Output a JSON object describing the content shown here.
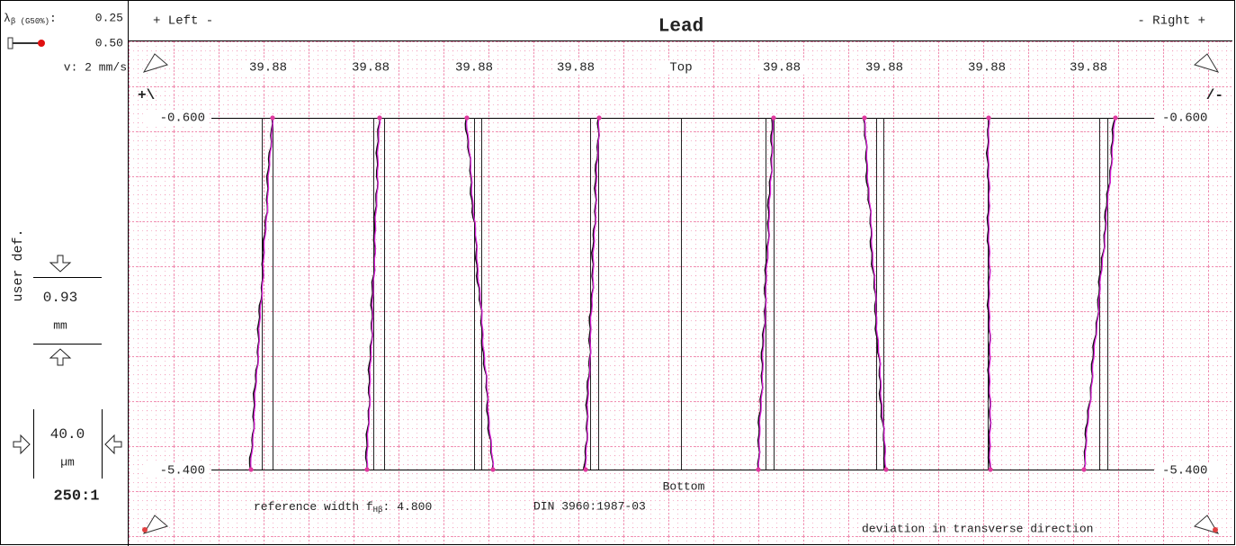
{
  "header": {
    "left": "+ Left -",
    "title": "Lead",
    "right": "- Right +"
  },
  "left_panel": {
    "filter_symbol": "λ",
    "filter_sub": "β (G50%)",
    "filter_suffix": ":",
    "filter_value": "0.25",
    "tip_value": "0.50",
    "speed": "v:  2 mm/s",
    "vertical_label": "user def.",
    "length_value": "0.93",
    "length_unit": "mm",
    "width_value": "40.0",
    "width_unit": "µm",
    "scale": "250:1"
  },
  "plot": {
    "column_labels": [
      "39.88",
      "39.88",
      "39.88",
      "39.88",
      "Top",
      "39.88",
      "39.88",
      "39.88",
      "39.88"
    ],
    "left_sign": "+\\",
    "right_sign": "/-",
    "top_value": "-0.600",
    "bottom_value": "-5.400",
    "bottom_label": "Bottom",
    "ref_label": "reference width f",
    "ref_sub": "Hβ",
    "ref_suffix": ":",
    "ref_value": "4.800",
    "standard": "DIN 3960:1987-03",
    "note": "deviation in transverse direction"
  }
}
